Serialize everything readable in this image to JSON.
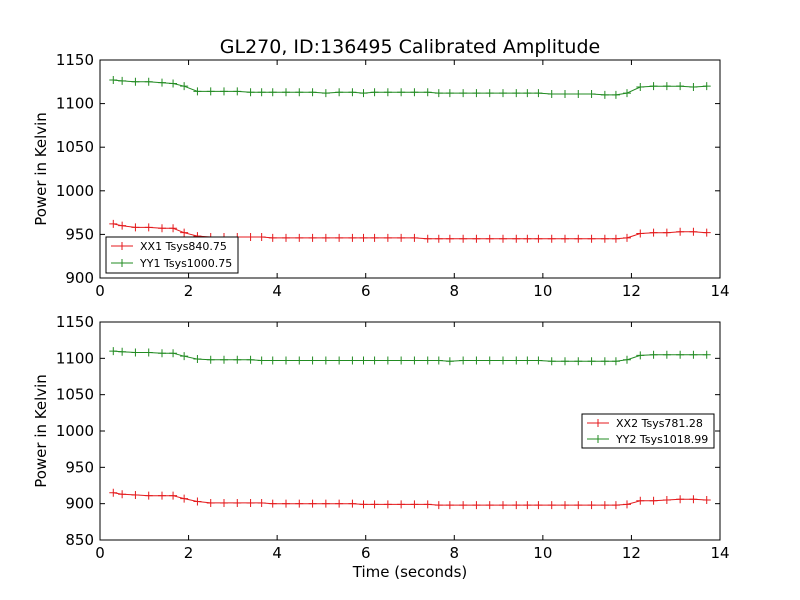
{
  "chart_data": [
    {
      "type": "line",
      "title": "GL270, ID:136495 Calibrated Amplitude",
      "xlabel": "",
      "ylabel": "Power in Kelvin",
      "xlim": [
        0,
        14
      ],
      "ylim": [
        900,
        1150
      ],
      "xticks": [
        "0",
        "2",
        "4",
        "6",
        "8",
        "10",
        "12",
        "14"
      ],
      "yticks": [
        "900",
        "950",
        "1000",
        "1050",
        "1100",
        "1150"
      ],
      "grid": false,
      "legend_position": "lower-left",
      "x": [
        0.3,
        0.5,
        0.8,
        1.1,
        1.4,
        1.65,
        1.9,
        2.2,
        2.5,
        2.8,
        3.1,
        3.4,
        3.65,
        3.9,
        4.2,
        4.5,
        4.8,
        5.1,
        5.4,
        5.7,
        5.95,
        6.2,
        6.5,
        6.8,
        7.1,
        7.4,
        7.65,
        7.9,
        8.2,
        8.5,
        8.8,
        9.1,
        9.4,
        9.65,
        9.9,
        10.2,
        10.5,
        10.8,
        11.1,
        11.4,
        11.65,
        11.9,
        12.2,
        12.5,
        12.8,
        13.1,
        13.4,
        13.7
      ],
      "series": [
        {
          "name": "XX1 Tsys840.75",
          "color": "#e41a1c",
          "values": [
            962,
            960,
            958,
            958,
            957,
            957,
            952,
            948,
            947,
            947,
            947,
            947,
            947,
            946,
            946,
            946,
            946,
            946,
            946,
            946,
            946,
            946,
            946,
            946,
            946,
            945,
            945,
            945,
            945,
            945,
            945,
            945,
            945,
            945,
            945,
            945,
            945,
            945,
            945,
            945,
            945,
            946,
            951,
            952,
            952,
            953,
            953,
            952
          ]
        },
        {
          "name": "YY1 Tsys1000.75",
          "color": "#228b22",
          "values": [
            1127,
            1126,
            1125,
            1125,
            1124,
            1123,
            1120,
            1114,
            1114,
            1114,
            1114,
            1113,
            1113,
            1113,
            1113,
            1113,
            1113,
            1112,
            1113,
            1113,
            1112,
            1113,
            1113,
            1113,
            1113,
            1113,
            1112,
            1112,
            1112,
            1112,
            1112,
            1112,
            1112,
            1112,
            1112,
            1111,
            1111,
            1111,
            1111,
            1110,
            1110,
            1112,
            1119,
            1120,
            1120,
            1120,
            1119,
            1120
          ]
        }
      ]
    },
    {
      "type": "line",
      "title": "",
      "xlabel": "Time (seconds)",
      "ylabel": "Power in Kelvin",
      "xlim": [
        0,
        14
      ],
      "ylim": [
        850,
        1150
      ],
      "xticks": [
        "0",
        "2",
        "4",
        "6",
        "8",
        "10",
        "12",
        "14"
      ],
      "yticks": [
        "850",
        "900",
        "950",
        "1000",
        "1050",
        "1100",
        "1150"
      ],
      "grid": false,
      "legend_position": "center-right",
      "x": [
        0.3,
        0.5,
        0.8,
        1.1,
        1.4,
        1.65,
        1.9,
        2.2,
        2.5,
        2.8,
        3.1,
        3.4,
        3.65,
        3.9,
        4.2,
        4.5,
        4.8,
        5.1,
        5.4,
        5.7,
        5.95,
        6.2,
        6.5,
        6.8,
        7.1,
        7.4,
        7.65,
        7.9,
        8.2,
        8.5,
        8.8,
        9.1,
        9.4,
        9.65,
        9.9,
        10.2,
        10.5,
        10.8,
        11.1,
        11.4,
        11.65,
        11.9,
        12.2,
        12.5,
        12.8,
        13.1,
        13.4,
        13.7
      ],
      "series": [
        {
          "name": "XX2 Tsys781.28",
          "color": "#e41a1c",
          "values": [
            915,
            913,
            912,
            911,
            911,
            911,
            907,
            903,
            901,
            901,
            901,
            901,
            901,
            900,
            900,
            900,
            900,
            900,
            900,
            900,
            899,
            899,
            899,
            899,
            899,
            899,
            898,
            898,
            898,
            898,
            898,
            898,
            898,
            898,
            898,
            898,
            898,
            898,
            898,
            898,
            898,
            899,
            904,
            904,
            905,
            906,
            906,
            905
          ]
        },
        {
          "name": "YY2 Tsys1018.99",
          "color": "#228b22",
          "values": [
            1110,
            1109,
            1108,
            1108,
            1107,
            1107,
            1103,
            1099,
            1098,
            1098,
            1098,
            1098,
            1097,
            1097,
            1097,
            1097,
            1097,
            1097,
            1097,
            1097,
            1097,
            1097,
            1097,
            1097,
            1097,
            1097,
            1097,
            1096,
            1097,
            1097,
            1097,
            1097,
            1097,
            1097,
            1097,
            1096,
            1096,
            1096,
            1096,
            1096,
            1096,
            1098,
            1104,
            1105,
            1105,
            1105,
            1105,
            1105
          ]
        }
      ]
    }
  ]
}
